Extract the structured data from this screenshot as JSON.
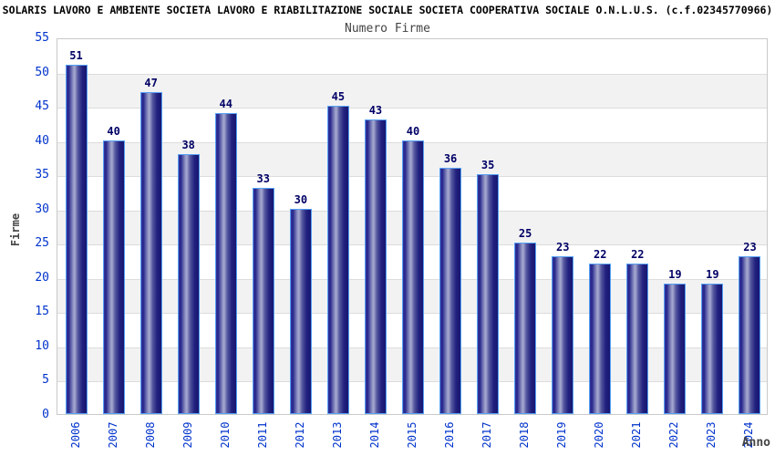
{
  "header": {
    "title": "SOLARIS LAVORO E AMBIENTE SOCIETA LAVORO E RIABILITAZIONE SOCIALE SOCIETA COOPERATIVA SOCIALE O.N.L.U.S. (c.f.02345770966)",
    "subtitle": "Numero Firme"
  },
  "chart_data": {
    "type": "bar",
    "title": "Numero Firme",
    "categories": [
      "2006",
      "2007",
      "2008",
      "2009",
      "2010",
      "2011",
      "2012",
      "2013",
      "2014",
      "2015",
      "2016",
      "2017",
      "2018",
      "2019",
      "2020",
      "2021",
      "2022",
      "2023",
      "2024"
    ],
    "values": [
      51,
      40,
      47,
      38,
      44,
      33,
      30,
      45,
      43,
      40,
      36,
      35,
      25,
      23,
      22,
      22,
      19,
      19,
      23
    ],
    "xlabel": "Anno",
    "ylabel": "Firme",
    "ylim": [
      0,
      55
    ],
    "ytick_step": 5,
    "grid": "horizontal-bands",
    "legend": "none",
    "colors": {
      "tick_label": "#0033cc",
      "value_label": "#000066",
      "axis_title": "#444444",
      "title_text": "#000000",
      "subtitle_text": "#444444",
      "bar_border": "#55a0f5",
      "bar_edge_dark": "#171770",
      "bar_mid": "#34349a",
      "bar_highlight": "#a6a9cf",
      "band_gray": "#f2f2f2",
      "band_white": "#ffffff",
      "grid_line": "#dcdcdc",
      "plot_border": "#c9c9c9"
    }
  }
}
